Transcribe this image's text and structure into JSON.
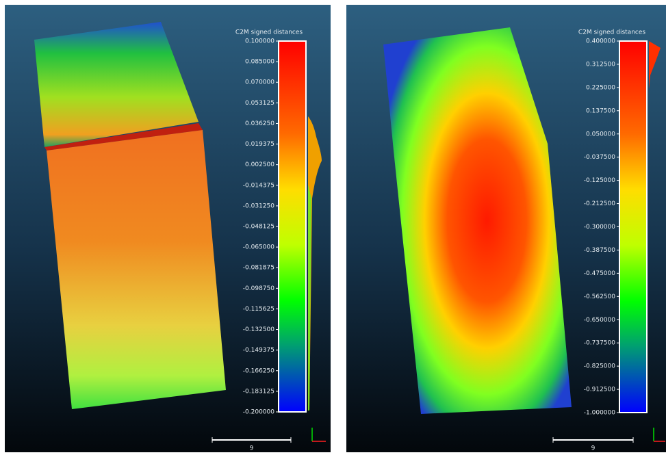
{
  "panels": [
    {
      "title": "C2M signed distances",
      "scale_labels": [
        "0.100000",
        "0.085000",
        "0.070000",
        "0.053125",
        "0.036250",
        "0.019375",
        "0.002500",
        "-0.014375",
        "-0.031250",
        "-0.048125",
        "-0.065000",
        "-0.081875",
        "-0.098750",
        "-0.115625",
        "-0.132500",
        "-0.149375",
        "-0.166250",
        "-0.183125",
        "-0.200000"
      ],
      "scale_bar_label": "9"
    },
    {
      "title": "C2M signed distances",
      "scale_labels": [
        "0.400000",
        "0.312500",
        "0.225000",
        "0.137500",
        "0.050000",
        "-0.037500",
        "-0.125000",
        "-0.212500",
        "-0.300000",
        "-0.387500",
        "-0.475000",
        "-0.562500",
        "-0.650000",
        "-0.737500",
        "-0.825000",
        "-0.912500",
        "-1.000000"
      ],
      "scale_bar_label": "9"
    }
  ]
}
